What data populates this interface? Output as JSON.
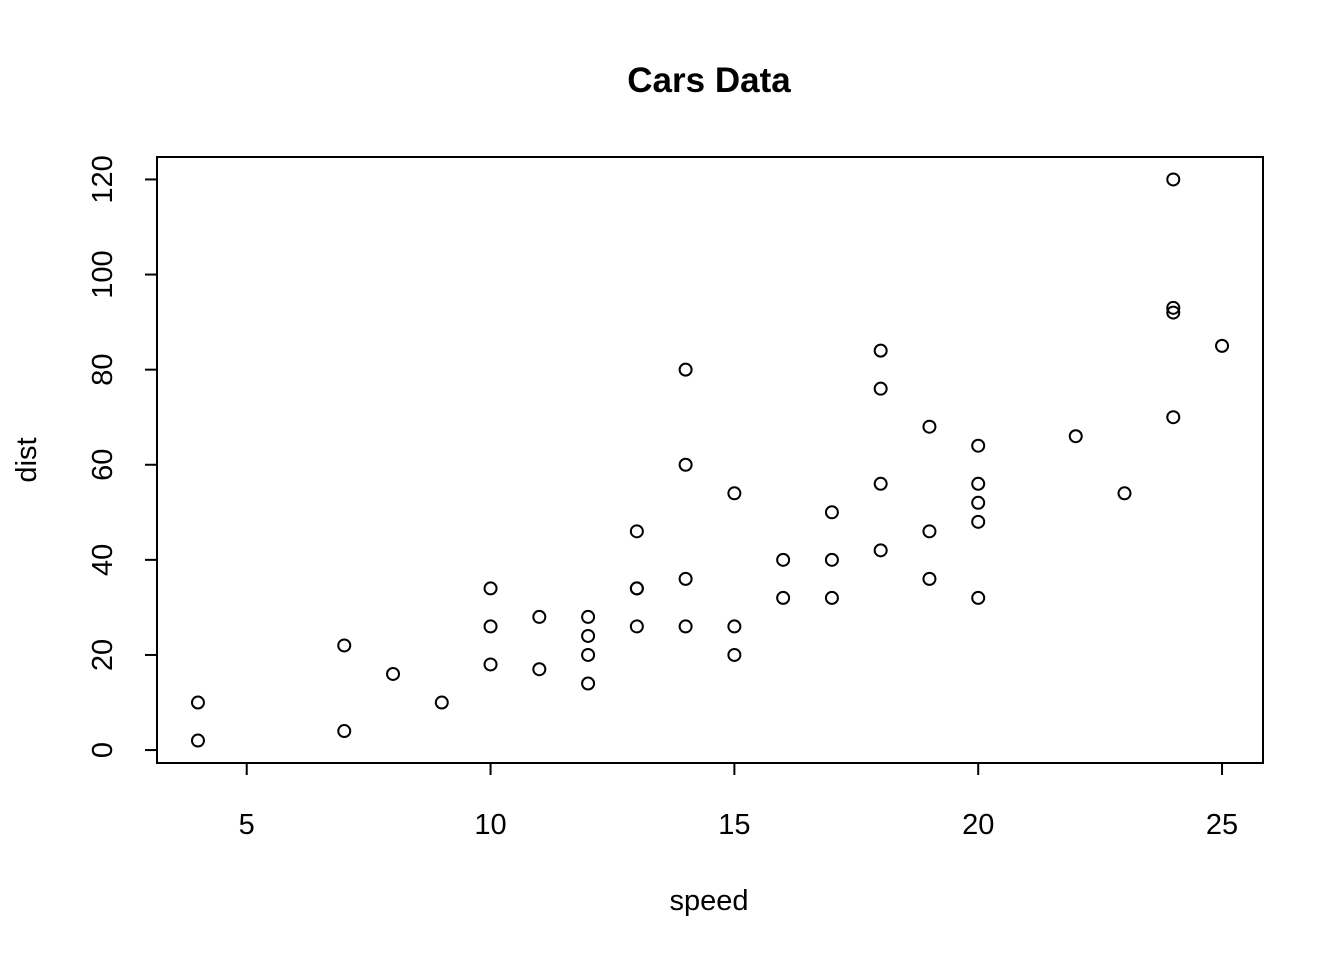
{
  "chart_data": {
    "type": "scatter",
    "title": "Cars Data",
    "xlabel": "speed",
    "ylabel": "dist",
    "xlim": [
      3.16,
      25.84
    ],
    "ylim": [
      -2.72,
      124.72
    ],
    "xticks": [
      5,
      10,
      15,
      20,
      25
    ],
    "yticks": [
      0,
      20,
      40,
      60,
      80,
      100,
      120
    ],
    "xtick_labels": [
      "5",
      "10",
      "15",
      "20",
      "25"
    ],
    "ytick_labels": [
      "0",
      "20",
      "40",
      "60",
      "80",
      "100",
      "120"
    ],
    "grid": false,
    "legend": "none",
    "marker": "open-circle",
    "points": [
      [
        4,
        2
      ],
      [
        4,
        10
      ],
      [
        7,
        4
      ],
      [
        7,
        22
      ],
      [
        8,
        16
      ],
      [
        9,
        10
      ],
      [
        10,
        18
      ],
      [
        10,
        26
      ],
      [
        10,
        34
      ],
      [
        11,
        17
      ],
      [
        11,
        28
      ],
      [
        12,
        14
      ],
      [
        12,
        20
      ],
      [
        12,
        24
      ],
      [
        12,
        28
      ],
      [
        13,
        26
      ],
      [
        13,
        34
      ],
      [
        13,
        34
      ],
      [
        13,
        46
      ],
      [
        14,
        26
      ],
      [
        14,
        36
      ],
      [
        14,
        60
      ],
      [
        14,
        80
      ],
      [
        15,
        20
      ],
      [
        15,
        26
      ],
      [
        15,
        54
      ],
      [
        16,
        32
      ],
      [
        16,
        40
      ],
      [
        17,
        32
      ],
      [
        17,
        40
      ],
      [
        17,
        50
      ],
      [
        18,
        42
      ],
      [
        18,
        56
      ],
      [
        18,
        76
      ],
      [
        18,
        84
      ],
      [
        19,
        36
      ],
      [
        19,
        46
      ],
      [
        19,
        68
      ],
      [
        20,
        32
      ],
      [
        20,
        48
      ],
      [
        20,
        52
      ],
      [
        20,
        56
      ],
      [
        20,
        64
      ],
      [
        22,
        66
      ],
      [
        23,
        54
      ],
      [
        24,
        70
      ],
      [
        24,
        92
      ],
      [
        24,
        93
      ],
      [
        24,
        120
      ],
      [
        25,
        85
      ]
    ]
  }
}
